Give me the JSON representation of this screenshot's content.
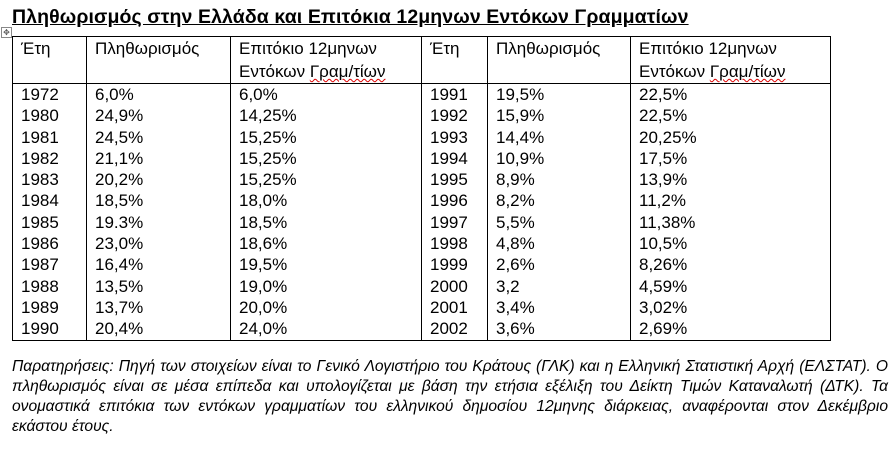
{
  "title": "Πληθωρισμός στην Ελλάδα και Επιτόκια 12μηνων Εντόκων Γραμματίων",
  "headers": {
    "year": "Έτη",
    "inflation": "Πληθωρισμός",
    "rate_line1": "Επιτόκιο 12μηνων",
    "rate_line2_a": "Εντόκων ",
    "rate_line2_b": "Γραμ/τίων"
  },
  "left_rows": [
    {
      "year": "1972",
      "inflation": "6,0%",
      "rate": "6,0%"
    },
    {
      "year": "1980",
      "inflation": "24,9%",
      "rate": "14,25%"
    },
    {
      "year": "1981",
      "inflation": "24,5%",
      "rate": "15,25%"
    },
    {
      "year": "1982",
      "inflation": "21,1%",
      "rate": "15,25%"
    },
    {
      "year": "1983",
      "inflation": "20,2%",
      "rate": "15,25%"
    },
    {
      "year": "1984",
      "inflation": "18,5%",
      "rate": "18,0%"
    },
    {
      "year": "1985",
      "inflation": "19.3%",
      "rate": "18,5%"
    },
    {
      "year": "1986",
      "inflation": "23,0%",
      "rate": "18,6%"
    },
    {
      "year": "1987",
      "inflation": "16,4%",
      "rate": "19,5%"
    },
    {
      "year": "1988",
      "inflation": "13,5%",
      "rate": "19,0%"
    },
    {
      "year": "1989",
      "inflation": "13,7%",
      "rate": "20,0%"
    },
    {
      "year": "1990",
      "inflation": "20,4%",
      "rate": "24,0%"
    }
  ],
  "right_rows": [
    {
      "year": "1991",
      "inflation": "19,5%",
      "rate": "22,5%"
    },
    {
      "year": "1992",
      "inflation": "15,9%",
      "rate": "22,5%"
    },
    {
      "year": "1993",
      "inflation": "14,4%",
      "rate": "20,25%"
    },
    {
      "year": "1994",
      "inflation": "10,9%",
      "rate": "17,5%"
    },
    {
      "year": "1995",
      "inflation": "8,9%",
      "rate": "13,9%"
    },
    {
      "year": "1996",
      "inflation": "8,2%",
      "rate": "11,2%"
    },
    {
      "year": "1997",
      "inflation": "5,5%",
      "rate": "11,38%"
    },
    {
      "year": "1998",
      "inflation": "4,8%",
      "rate": "10,5%"
    },
    {
      "year": "1999",
      "inflation": "2,6%",
      "rate": "8,26%"
    },
    {
      "year": "2000",
      "inflation": "3,2",
      "rate": "4,59%"
    },
    {
      "year": "2001",
      "inflation": "3,4%",
      "rate": "3,02%"
    },
    {
      "year": "2002",
      "inflation": "3,6%",
      "rate": "2,69%"
    }
  ],
  "notes": "Παρατηρήσεις: Πηγή των στοιχείων είναι το Γενικό Λογιστήριο του Κράτους (ΓΛΚ) και η Ελληνική Στατιστική Αρχή (ΕΛΣΤΑΤ). Ο πληθωρισμός είναι σε μέσα επίπεδα και υπολογίζεται με βάση την ετήσια εξέλιξη του Δείκτη Τιμών Καταναλωτή (ΔΤΚ). Τα ονομαστικά επιτόκια των εντόκων γραμματίων του ελληνικού δημοσίου 12μηνης διάρκειας, αναφέρονται στον Δεκέμβριο εκάστου έτους.",
  "icons": {
    "table_move_handle": "four-arrows-move-icon"
  }
}
